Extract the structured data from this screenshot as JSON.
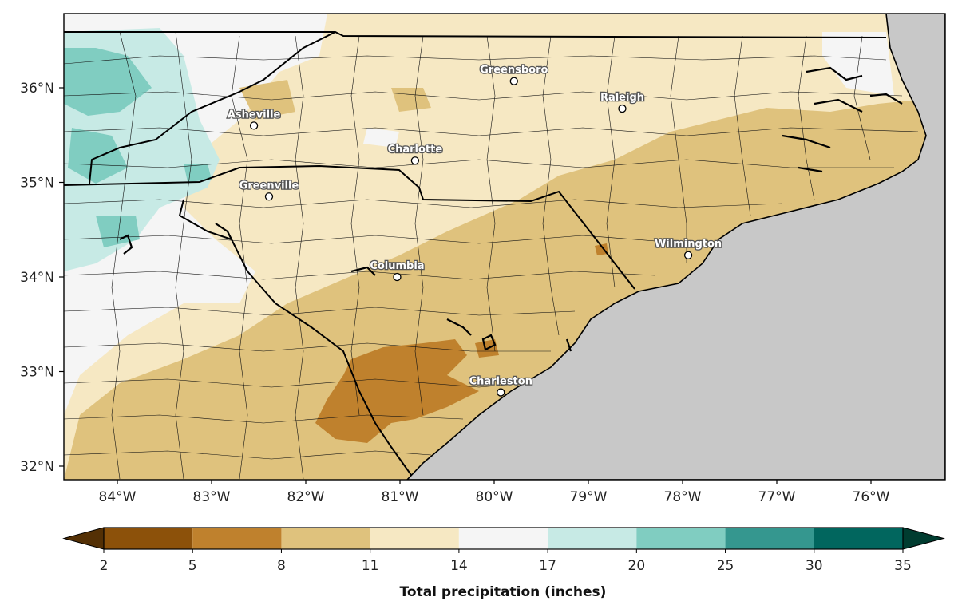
{
  "map": {
    "longitude_ticks": [
      "84°W",
      "83°W",
      "82°W",
      "81°W",
      "80°W",
      "79°W",
      "78°W",
      "77°W",
      "76°W"
    ],
    "latitude_ticks": [
      "36°N",
      "35°N",
      "34°N",
      "33°N",
      "32°N"
    ],
    "cities": [
      {
        "name": "Greensboro",
        "lon": -79.79,
        "lat": 36.07
      },
      {
        "name": "Raleigh",
        "lon": -78.64,
        "lat": 35.78
      },
      {
        "name": "Asheville",
        "lon": -82.55,
        "lat": 35.6
      },
      {
        "name": "Charlotte",
        "lon": -80.84,
        "lat": 35.23
      },
      {
        "name": "Greenville",
        "lon": -82.39,
        "lat": 34.85
      },
      {
        "name": "Wilmington",
        "lon": -77.94,
        "lat": 34.23
      },
      {
        "name": "Columbia",
        "lon": -81.03,
        "lat": 34.0
      },
      {
        "name": "Charleston",
        "lon": -79.93,
        "lat": 32.78
      }
    ],
    "ocean_color": "#c8c8c8"
  },
  "colorbar": {
    "title": "Total precipitation (inches)",
    "tick_labels": [
      "2",
      "5",
      "8",
      "11",
      "14",
      "17",
      "20",
      "25",
      "30",
      "35"
    ],
    "colors": [
      "#8c510a",
      "#bf812d",
      "#dfc27d",
      "#f6e8c3",
      "#f5f5f5",
      "#c7eae5",
      "#80cdc1",
      "#35978f",
      "#01665e"
    ],
    "under_color": "#543005",
    "over_color": "#003c30"
  }
}
